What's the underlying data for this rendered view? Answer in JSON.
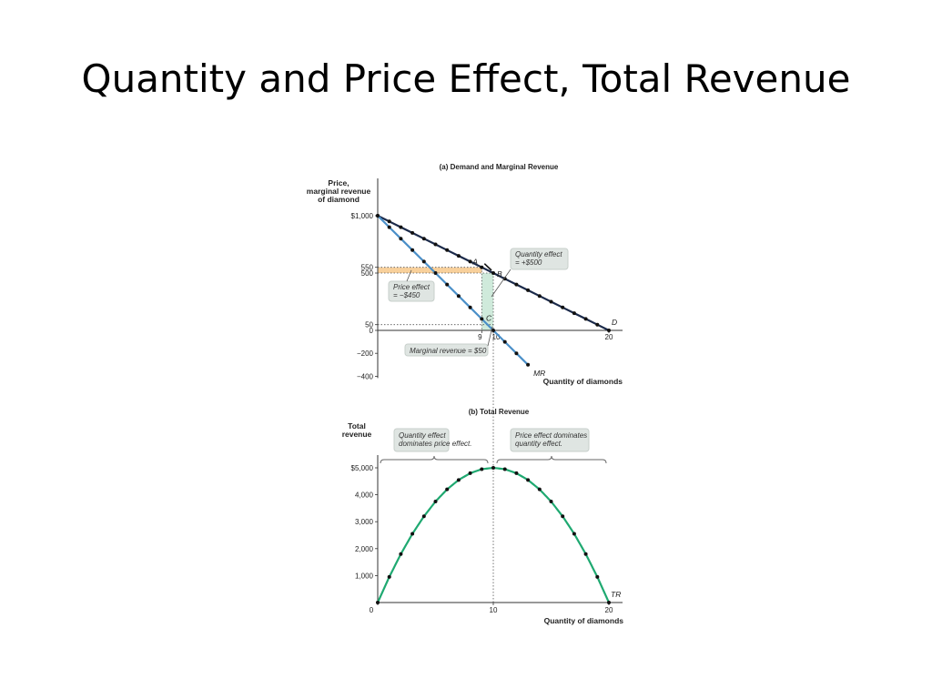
{
  "slide": {
    "title": "Quantity and Price Effect, Total Revenue"
  },
  "colors": {
    "demand": "#1b2a4a",
    "mr": "#4a8fc8",
    "tr": "#1fa971",
    "dot": "#111111",
    "note_bg": "#dfe5e2",
    "quantity_shade": "#bfe3cf",
    "price_shade": "#f7c88a"
  },
  "chart_data": [
    {
      "type": "line",
      "title": "(a) Demand and Marginal Revenue",
      "ylabel": [
        "Price,",
        "marginal revenue",
        "of diamond"
      ],
      "xlabel": "Quantity of diamonds",
      "xlim": [
        0,
        20
      ],
      "ylim": [
        -400,
        1000
      ],
      "yticks": [
        {
          "value": 1000,
          "label": "$1,000"
        },
        {
          "value": 550,
          "label": "550"
        },
        {
          "value": 500,
          "label": "500"
        },
        {
          "value": 50,
          "label": "50"
        },
        {
          "value": 0,
          "label": "0"
        },
        {
          "value": -200,
          "label": "−200"
        },
        {
          "value": -400,
          "label": "−400"
        }
      ],
      "xticks": [
        {
          "value": 9,
          "label": "9"
        },
        {
          "value": 10,
          "label": "10"
        },
        {
          "value": 20,
          "label": "20"
        }
      ],
      "series": [
        {
          "name": "D",
          "x": [
            0,
            1,
            2,
            3,
            4,
            5,
            6,
            7,
            8,
            9,
            10,
            11,
            12,
            13,
            14,
            15,
            16,
            17,
            18,
            19,
            20
          ],
          "y": [
            1000,
            950,
            900,
            850,
            800,
            750,
            700,
            650,
            600,
            550,
            500,
            450,
            400,
            350,
            300,
            250,
            200,
            150,
            100,
            50,
            0
          ]
        },
        {
          "name": "MR",
          "x": [
            0,
            1,
            2,
            3,
            4,
            5,
            6,
            7,
            8,
            9,
            10,
            11,
            12,
            13
          ],
          "y": [
            1000,
            900,
            800,
            700,
            600,
            500,
            400,
            300,
            200,
            100,
            0,
            -100,
            -200,
            -300
          ]
        }
      ],
      "points": [
        {
          "label": "A",
          "x": 9,
          "y": 550
        },
        {
          "label": "B",
          "x": 10,
          "y": 500
        },
        {
          "label": "C",
          "x": 10,
          "y": 50
        }
      ],
      "annotations": {
        "quantity_effect": [
          "Quantity effect",
          "= +$500"
        ],
        "price_effect": [
          "Price effect",
          "= −$450"
        ],
        "marginal_revenue": "Marginal revenue = $50"
      }
    },
    {
      "type": "line",
      "title": "(b) Total Revenue",
      "ylabel": [
        "Total",
        "revenue"
      ],
      "xlabel": "Quantity of diamonds",
      "xlim": [
        0,
        20
      ],
      "ylim": [
        0,
        5000
      ],
      "yticks": [
        {
          "value": 5000,
          "label": "$5,000"
        },
        {
          "value": 4000,
          "label": "4,000"
        },
        {
          "value": 3000,
          "label": "3,000"
        },
        {
          "value": 2000,
          "label": "2,000"
        },
        {
          "value": 1000,
          "label": "1,000"
        }
      ],
      "xticks": [
        {
          "value": 0,
          "label": "0"
        },
        {
          "value": 10,
          "label": "10"
        },
        {
          "value": 20,
          "label": "20"
        }
      ],
      "series": [
        {
          "name": "TR",
          "x": [
            0,
            1,
            2,
            3,
            4,
            5,
            6,
            7,
            8,
            9,
            10,
            11,
            12,
            13,
            14,
            15,
            16,
            17,
            18,
            19,
            20
          ],
          "y": [
            0,
            950,
            1800,
            2550,
            3200,
            3750,
            4200,
            4550,
            4800,
            4950,
            5000,
            4950,
            4800,
            4550,
            4200,
            3750,
            3200,
            2550,
            1800,
            950,
            0
          ]
        }
      ],
      "annotations": {
        "left_region": [
          "Quantity effect",
          "dominates price effect."
        ],
        "right_region": [
          "Price effect dominates",
          "quantity effect."
        ]
      }
    }
  ]
}
